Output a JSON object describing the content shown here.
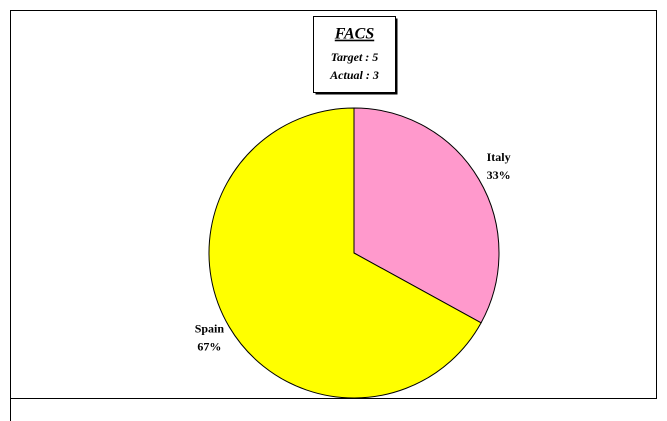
{
  "chart_data": {
    "type": "pie",
    "title": "FACS",
    "annotations": [
      "Target : 5",
      "Actual : 3"
    ],
    "categories": [
      "Italy",
      "Spain"
    ],
    "values": [
      33,
      67
    ],
    "value_labels": [
      "33%",
      "67%"
    ],
    "colors": [
      "#ff99cc",
      "#ffff00"
    ]
  }
}
